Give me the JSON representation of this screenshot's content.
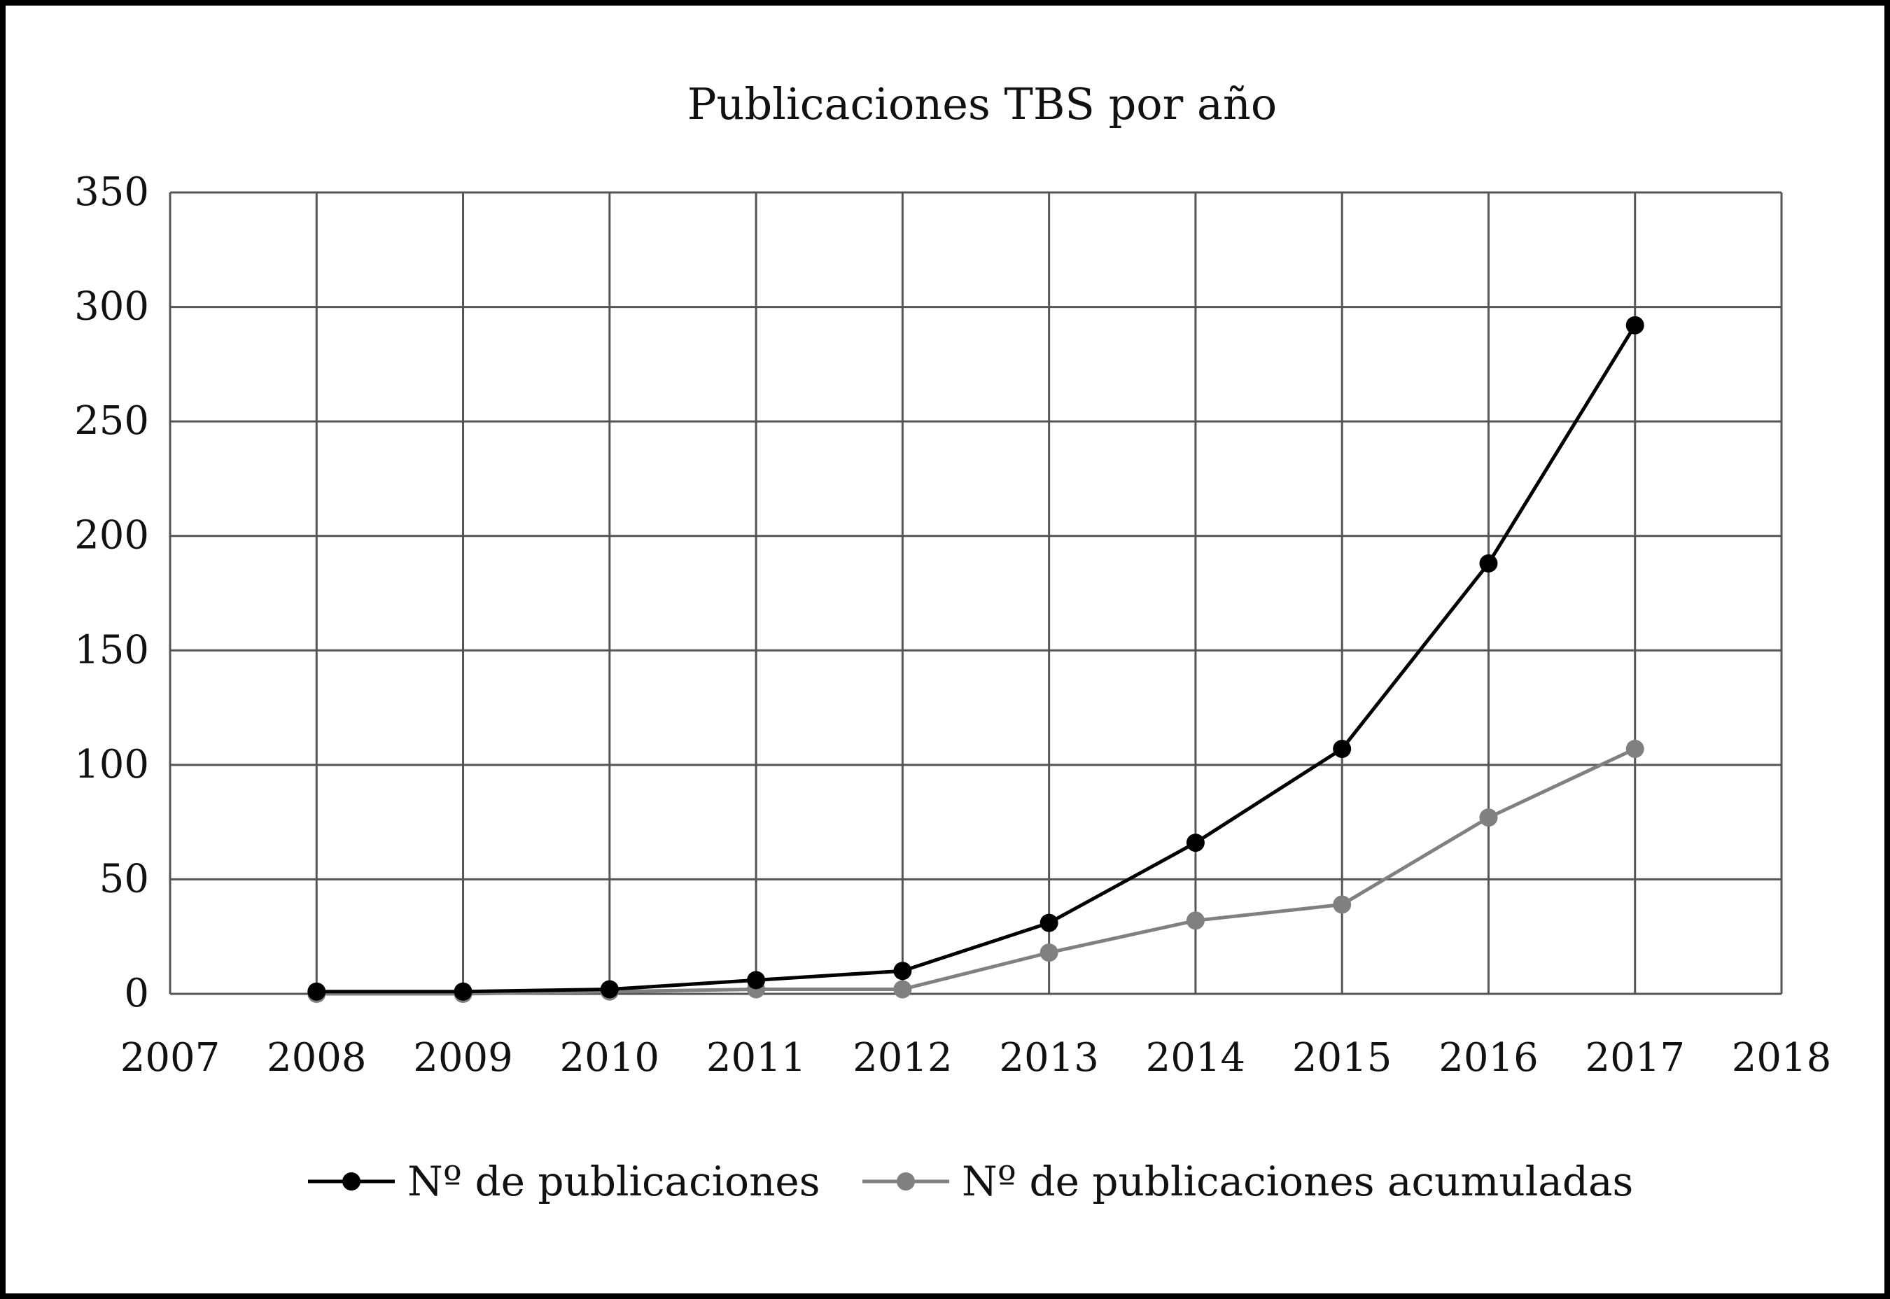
{
  "chart_data": {
    "type": "line",
    "title": "Publicaciones TBS por año",
    "xlabel": "",
    "ylabel": "",
    "x": [
      2008,
      2009,
      2010,
      2011,
      2012,
      2013,
      2014,
      2015,
      2016,
      2017
    ],
    "x_ticks": [
      "2007",
      "2008",
      "2009",
      "2010",
      "2011",
      "2012",
      "2013",
      "2014",
      "2015",
      "2016",
      "2017",
      "2018"
    ],
    "xlim": [
      2007,
      2018
    ],
    "y_ticks": [
      "0",
      "50",
      "100",
      "150",
      "200",
      "250",
      "300",
      "350"
    ],
    "ylim": [
      0,
      350
    ],
    "grid": true,
    "legend_position": "bottom",
    "series": [
      {
        "name": "Nº de publicaciones",
        "values": [
          1,
          1,
          2,
          6,
          10,
          31,
          66,
          107,
          188,
          292
        ],
        "color": "#000000"
      },
      {
        "name": "Nº de publicaciones acumuladas",
        "values": [
          0,
          0,
          1,
          2,
          2,
          18,
          32,
          39,
          77,
          107
        ],
        "color": "#808080"
      }
    ]
  }
}
